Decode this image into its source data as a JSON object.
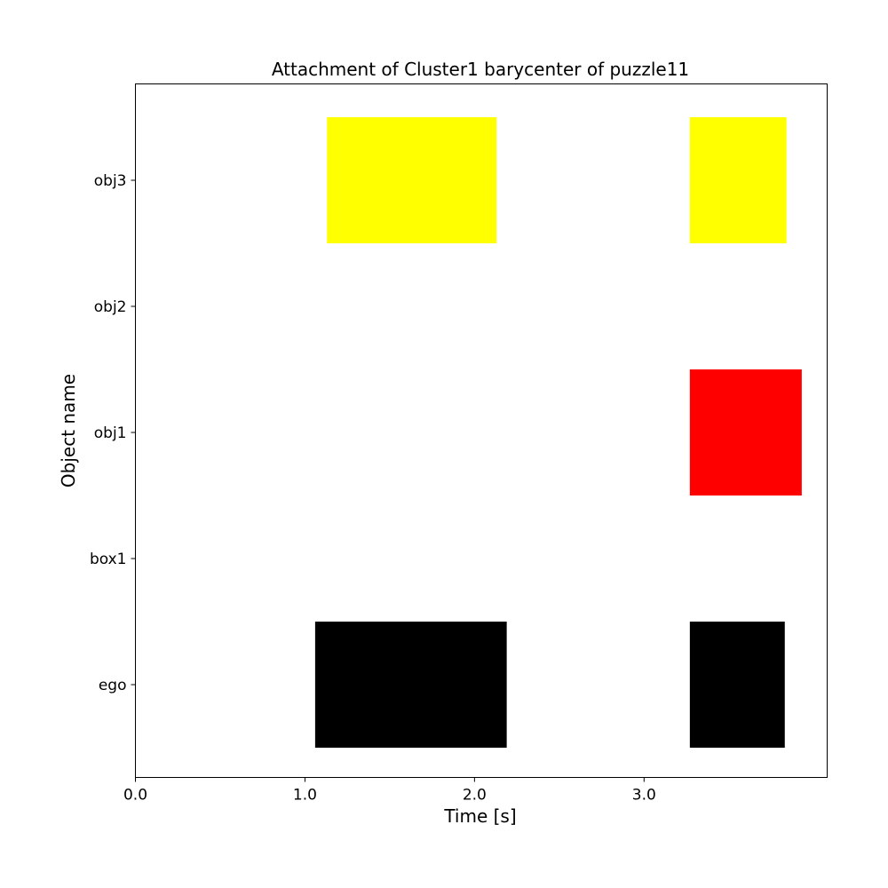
{
  "chart_data": {
    "type": "gantt",
    "title": "Attachment of Cluster1 barycenter of puzzle11",
    "xlabel": "Time [s]",
    "ylabel": "Object name",
    "xlim": [
      0.0,
      4.08
    ],
    "x_ticks": [
      0.0,
      1.0,
      2.0,
      3.0
    ],
    "x_tick_labels": [
      "0.0",
      "1.0",
      "2.0",
      "3.0"
    ],
    "categories": [
      "ego",
      "box1",
      "obj1",
      "obj2",
      "obj3"
    ],
    "grid": false,
    "legend": "none",
    "bars": [
      {
        "object": "ego",
        "start": 1.06,
        "end": 2.19,
        "color": "#000000"
      },
      {
        "object": "ego",
        "start": 3.27,
        "end": 3.83,
        "color": "#000000"
      },
      {
        "object": "obj1",
        "start": 3.27,
        "end": 3.93,
        "color": "#ff0000"
      },
      {
        "object": "obj3",
        "start": 1.13,
        "end": 2.13,
        "color": "#ffff00"
      },
      {
        "object": "obj3",
        "start": 3.27,
        "end": 3.84,
        "color": "#ffff00"
      }
    ]
  }
}
